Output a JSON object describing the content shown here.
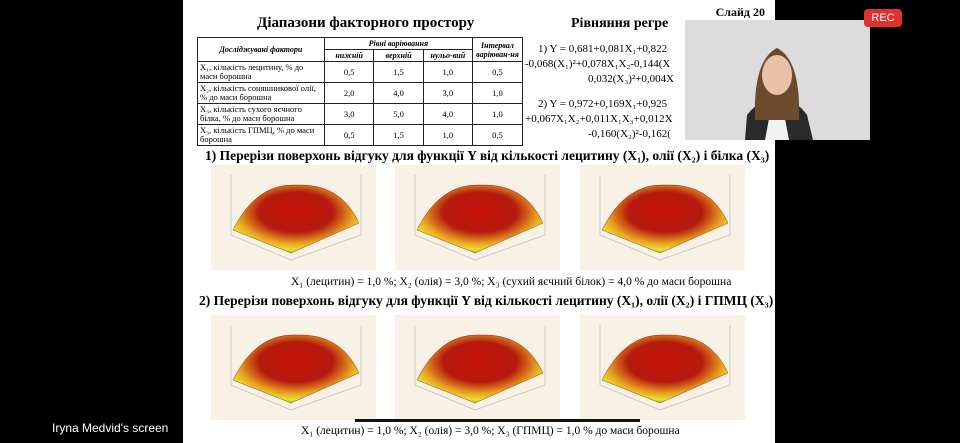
{
  "window": {
    "rec": "REC",
    "presenter": "Iryna Medvid's screen"
  },
  "slide": {
    "number": "Слайд 20",
    "table_title": "Діапазони факторного простору",
    "table": {
      "header": {
        "factors": "Досліджувані фактори",
        "levels": "Рівні варіювання",
        "low": "нижній",
        "high": "верхній",
        "zero": "нульо-вий",
        "interval": "Інтервал варіюван-ня"
      },
      "rows": [
        [
          "X₁, кількість лецитину, % до маси борошна",
          "0,5",
          "1,5",
          "1,0",
          "0,5"
        ],
        [
          "X₂, кількість соняшникової олії, % до маси борошна",
          "2,0",
          "4,0",
          "3,0",
          "1,0"
        ],
        [
          "X₃, кількість сухого яєчного білка, % до маси борошна",
          "3,0",
          "5,0",
          "4,0",
          "1,0"
        ],
        [
          "X₃, кількість ГПМЦ, % до маси борошна",
          "0,5",
          "1,5",
          "1,0",
          "0,5"
        ]
      ]
    },
    "equations_title": "Рівняння регре",
    "equations": [
      "1) Y = 0,681+0,081X₁+0,822",
      "-0,068(X₁)²+0,078X₁X₂-0,144(X",
      "0,032(X₃)²+0,004X",
      "2) Y = 0,972+0,169X₁+0,925",
      "+0,067X₁X₂+0,011X₁X₃+0,012X",
      "-0,160(X₂)²-0,162("
    ],
    "sections": [
      {
        "title": "1) Перерізи поверхонь відгуку для функції Y від кількості лецитину (X₁), олії (X₂) і білка (X₃)",
        "caption": "X₁ (лецитин) = 1,0 %;  X₂ (олія) = 3,0 %; X₃ (сухий яєчний білок) = 4,0 % до маси борошна"
      },
      {
        "title": "2) Перерізи поверхонь відгуку для функції Y від кількості лецитину (X₁), олії (X₂) і ГПМЦ (X₃)",
        "caption": "X₁ (лецитин) = 1,0 %;  X₂ (олія) = 3,0 %; X₃ (ГПМЦ) = 1,0 % до маси борошна"
      }
    ]
  }
}
